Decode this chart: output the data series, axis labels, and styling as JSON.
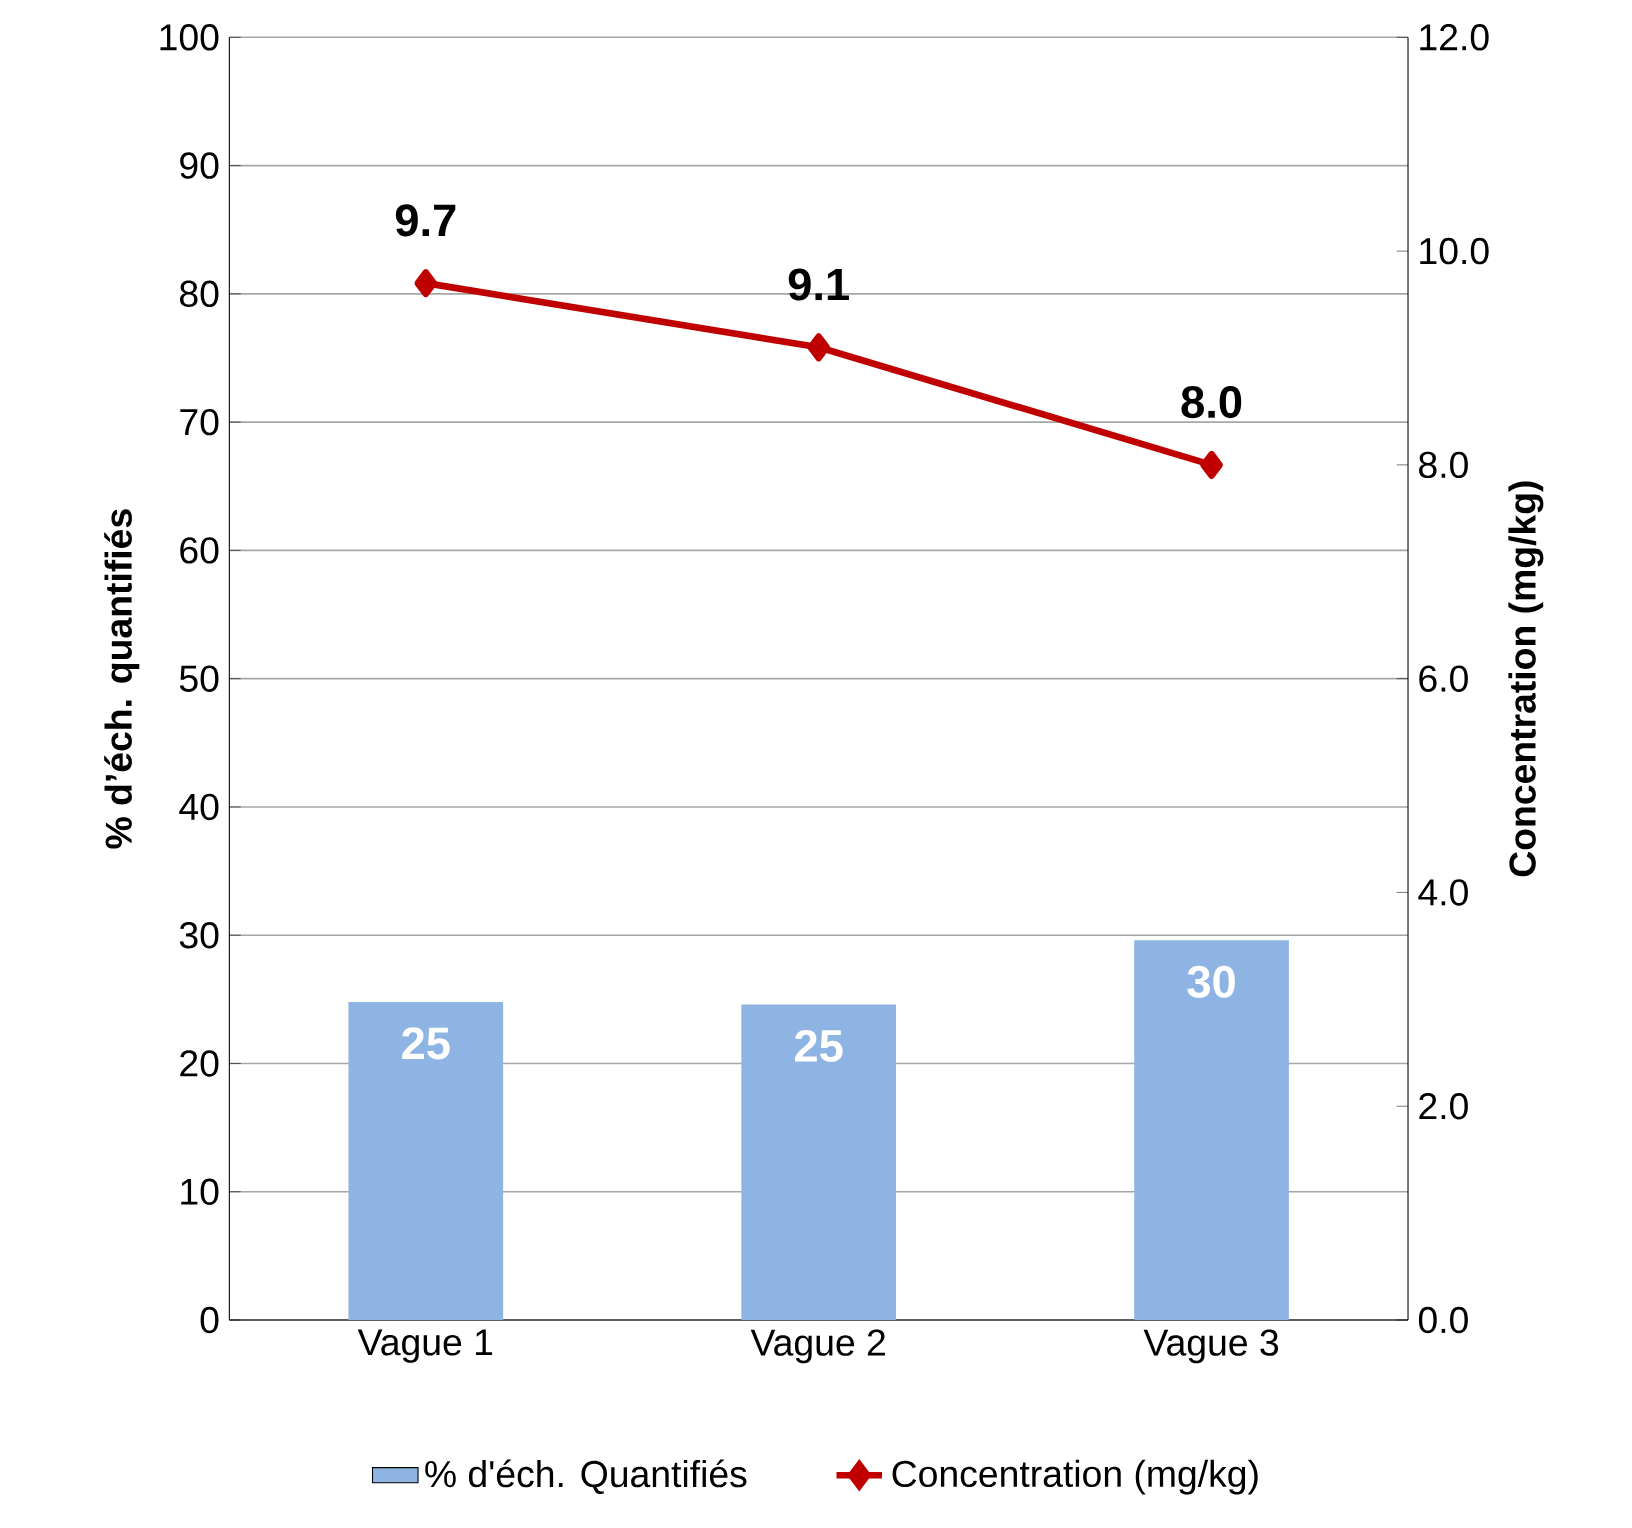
{
  "chart_data": {
    "type": "bar",
    "xlabel": null,
    "ylabel": "% d’éch. quantifiés",
    "y2label": "Concentration (mg/kg)",
    "categories": [
      "Vague 1",
      "Vague 2",
      "Vague 3"
    ],
    "series": [
      {
        "name": "% d'éch. Quantifiés",
        "color": "#8eb4e3",
        "values": [
          24.8,
          24.6,
          29.6
        ],
        "value_labels": [
          "25",
          "25",
          "30"
        ]
      },
      {
        "name": "Concentration (mg/kg)",
        "type": "line",
        "axis": "y2",
        "color": "#c00000",
        "values": [
          9.7,
          9.1,
          8.0
        ],
        "value_labels": [
          "9.7",
          "9.1",
          "8.0"
        ],
        "marker": "diamond"
      }
    ],
    "ylim": [
      0,
      100
    ],
    "yticks": [
      0,
      10,
      20,
      30,
      40,
      50,
      60,
      70,
      80,
      90,
      100
    ],
    "y2lim": [
      0,
      12
    ],
    "y2ticks": [
      {
        "value": 0,
        "label": "0.0"
      },
      {
        "value": 2,
        "label": "2.0"
      },
      {
        "value": 4,
        "label": "4.0"
      },
      {
        "value": 6,
        "label": "6.0"
      },
      {
        "value": 8,
        "label": "8.0"
      },
      {
        "value": 10,
        "label": "10.0"
      },
      {
        "value": 12,
        "label": "12.0"
      }
    ],
    "grid": "y",
    "legend": "bottom"
  }
}
